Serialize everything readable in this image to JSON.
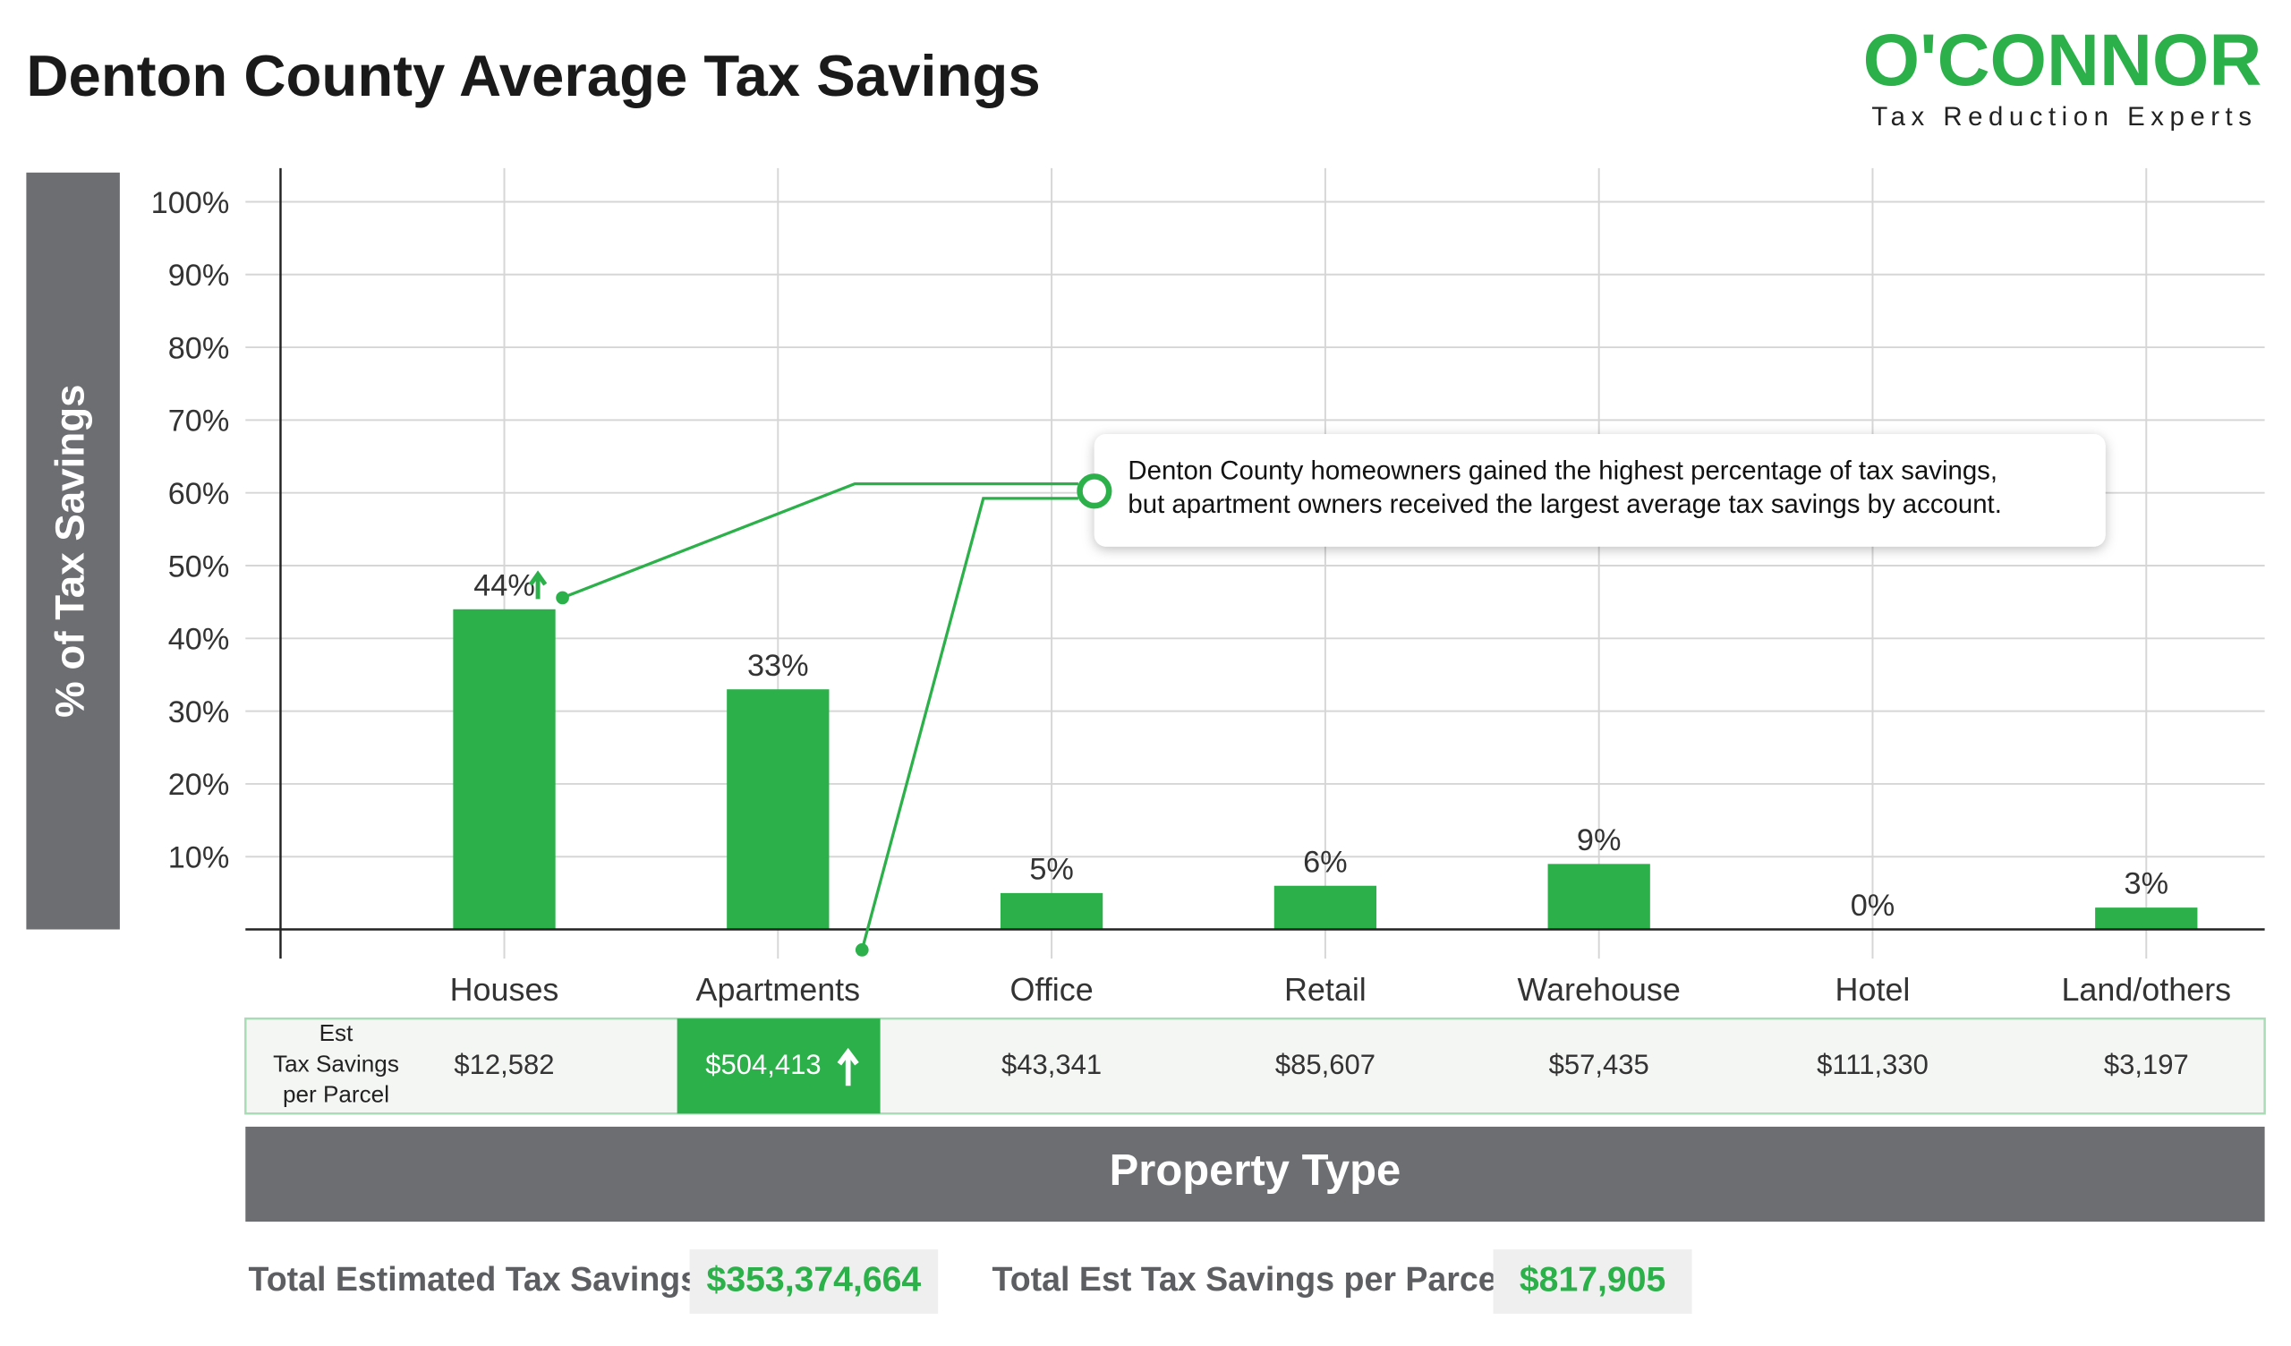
{
  "chart_data": {
    "type": "bar",
    "title": "Denton County Average Tax Savings",
    "logo": {
      "name": "O'CONNOR",
      "tagline": "Tax Reduction Experts"
    },
    "y_label": "% of Tax Savings",
    "x_label": "Property Type",
    "categories": [
      "Houses",
      "Apartments",
      "Office",
      "Retail",
      "Warehouse",
      "Hotel",
      "Land/others"
    ],
    "values": [
      44,
      33,
      5,
      6,
      9,
      0,
      3
    ],
    "value_labels": [
      "44%",
      "33%",
      "5%",
      "6%",
      "9%",
      "0%",
      "3%"
    ],
    "color": "#2bb04a",
    "ylim": [
      0,
      100
    ],
    "yticks": [
      {
        "value": 10,
        "label": "10%"
      },
      {
        "value": 20,
        "label": "20%"
      },
      {
        "value": 30,
        "label": "30%"
      },
      {
        "value": 40,
        "label": "40%"
      },
      {
        "value": 50,
        "label": "50%"
      },
      {
        "value": 60,
        "label": "60%"
      },
      {
        "value": 70,
        "label": "70%"
      },
      {
        "value": 80,
        "label": "80%"
      },
      {
        "value": 90,
        "label": "90%"
      },
      {
        "value": 100,
        "label": "100%"
      }
    ],
    "grid": true,
    "annotation": [
      "Denton County homeowners gained the highest percentage of tax savings,",
      "but apartment owners received the largest average tax savings by account."
    ],
    "parcel_row_label": [
      "Est",
      "Tax Savings",
      "per Parcel"
    ],
    "parcel_savings": [
      "$12,582",
      "$504,413",
      "$43,341",
      "$85,607",
      "$57,435",
      "$111,330",
      "$3,197"
    ],
    "highlight_category": "Apartments",
    "totals": [
      {
        "label": "Total Estimated Tax Savings",
        "value": "$353,374,664"
      },
      {
        "label": "Total Est Tax Savings per Parcel",
        "value": "$817,905"
      }
    ]
  }
}
